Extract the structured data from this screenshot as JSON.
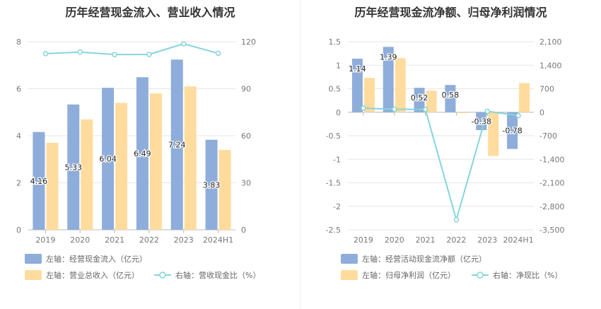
{
  "colors": {
    "bar_primary": "#8eadda",
    "bar_secondary": "#ffdc9e",
    "line": "#86d4da",
    "grid": "#e6e6e6",
    "axis": "#bbbbbb"
  },
  "chart_data": [
    {
      "type": "bar",
      "title": "历年经营现金流入、营业收入情况",
      "categories": [
        "2019",
        "2020",
        "2021",
        "2022",
        "2023",
        "2024H1"
      ],
      "series": [
        {
          "name": "左轴：经营现金流入（亿元）",
          "axis": "left",
          "kind": "bar",
          "values": [
            4.16,
            5.33,
            6.04,
            6.49,
            7.24,
            3.83
          ],
          "data_labels": [
            "4.16",
            "5.33",
            "6.04",
            "6.49",
            "7.24",
            "3.83"
          ]
        },
        {
          "name": "左轴：营业总收入（亿元）",
          "axis": "left",
          "kind": "bar",
          "values": [
            3.7,
            4.7,
            5.4,
            5.8,
            6.1,
            3.4
          ]
        },
        {
          "name": "右轴：营收现金比（%）",
          "axis": "right",
          "kind": "line",
          "values": [
            112.4,
            113.4,
            111.8,
            111.9,
            118.7,
            112.6
          ]
        }
      ],
      "left_axis": {
        "min": 0,
        "max": 8,
        "ticks": [
          0,
          2,
          4,
          6,
          8
        ],
        "tick_labels": [
          "0",
          "2",
          "4",
          "6",
          "8"
        ]
      },
      "right_axis": {
        "min": 0,
        "max": 120,
        "ticks": [
          0,
          30,
          60,
          90,
          120
        ],
        "tick_labels": [
          "0",
          "30",
          "60",
          "90",
          "120"
        ]
      },
      "grid": true,
      "legend_position": "bottom-left"
    },
    {
      "type": "bar",
      "title": "历年经营现金流净额、归母净利润情况",
      "categories": [
        "2019",
        "2020",
        "2021",
        "2022",
        "2023",
        "2024H1"
      ],
      "series": [
        {
          "name": "左轴：经营活动现金流净额（亿元）",
          "axis": "left",
          "kind": "bar",
          "values": [
            1.14,
            1.39,
            0.52,
            0.58,
            -0.38,
            -0.78
          ],
          "data_labels": [
            "1.14",
            "1.39",
            "0.52",
            "0.58",
            "-0.38",
            "-0.78"
          ]
        },
        {
          "name": "左轴：归母净利润（亿元）",
          "axis": "left",
          "kind": "bar",
          "values": [
            0.73,
            1.15,
            0.46,
            -0.02,
            -0.93,
            0.62
          ]
        },
        {
          "name": "右轴：净现比（%）",
          "axis": "right",
          "kind": "line",
          "values": [
            120,
            90,
            85,
            -3200,
            30,
            -100
          ]
        }
      ],
      "left_axis": {
        "min": -2.5,
        "max": 1.5,
        "ticks": [
          -2.5,
          -2,
          -1.5,
          -1,
          -0.5,
          0,
          0.5,
          1,
          1.5
        ],
        "tick_labels": [
          "-2.5",
          "-2",
          "-1.5",
          "-1",
          "-0.5",
          "0",
          "0.5",
          "1",
          "1.5"
        ]
      },
      "right_axis": {
        "min": -3500,
        "max": 2100,
        "ticks": [
          -3500,
          -2800,
          -2100,
          -1400,
          -700,
          0,
          700,
          1400,
          2100
        ],
        "tick_labels": [
          "-3,500",
          "-2,800",
          "-2,100",
          "-1,400",
          "-700",
          "0",
          "700",
          "1,400",
          "2,100"
        ]
      },
      "grid": true,
      "legend_position": "bottom-left"
    }
  ]
}
